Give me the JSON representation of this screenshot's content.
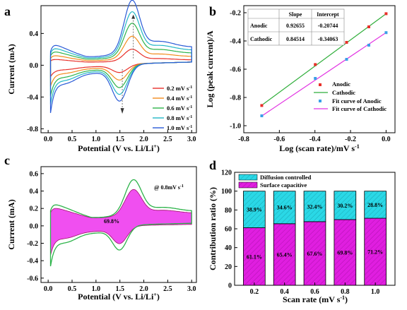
{
  "panels": {
    "a": "a",
    "b": "b",
    "c": "c",
    "d": "d"
  },
  "colors": {
    "red": "#e8302a",
    "orange": "#f28c1e",
    "green": "#2db34a",
    "teal": "#22b7c6",
    "blue": "#2a5bd7",
    "magenta": "#e01ee0",
    "cyan": "#2ad8e6",
    "linegreen": "#2fae3a",
    "linemagenta": "#e233e2"
  },
  "chart_data": [
    {
      "id": "a",
      "type": "line",
      "xlabel": "Potential (V vs. Li/Li",
      "xlabel_sup": "+",
      "xlabel_end": ")",
      "ylabel": "Current (mA)",
      "xlim": [
        -0.15,
        3.1
      ],
      "ylim": [
        -0.85,
        0.75
      ],
      "xticks": [
        "0.0",
        "0.5",
        "1.0",
        "1.5",
        "2.0",
        "2.5",
        "3.0"
      ],
      "yticks": [
        "-0.8",
        "-0.4",
        "0.0",
        "0.4"
      ],
      "series": [
        {
          "name": "0.2 mV s",
          "color": "red",
          "scale": 0.2
        },
        {
          "name": "0.4 mV s",
          "color": "orange",
          "scale": 0.38
        },
        {
          "name": "0.6 mV s",
          "color": "green",
          "scale": 0.56
        },
        {
          "name": "0.8 mV s",
          "color": "teal",
          "scale": 0.72
        },
        {
          "name": "1.0 mV s",
          "color": "blue",
          "scale": 0.88
        }
      ],
      "series_unit_sup": "-1",
      "peak_anodic": {
        "x": 1.78,
        "y": 0.62
      },
      "peak_cathodic": {
        "x": 1.55,
        "y": -0.36
      }
    },
    {
      "id": "b",
      "type": "scatter",
      "xlabel": "Log (scan rate)/mV s",
      "xlabel_sup": "-1",
      "ylabel": "Log (peak current)/A",
      "xlim": [
        -0.8,
        0.05
      ],
      "ylim": [
        -1.05,
        -0.15
      ],
      "xticks": [
        "-0.8",
        "-0.6",
        "-0.4",
        "-0.2",
        "0.0"
      ],
      "yticks": [
        "-1.0",
        "-0.8",
        "-0.6",
        "-0.4",
        "-0.2"
      ],
      "x": [
        -0.699,
        -0.398,
        -0.222,
        -0.097,
        0.0
      ],
      "anodic": [
        -0.857,
        -0.567,
        -0.41,
        -0.3,
        -0.207
      ],
      "cathodic": [
        -0.93,
        -0.665,
        -0.53,
        -0.43,
        -0.341
      ],
      "table": {
        "headers": [
          "",
          "Slope",
          "Intercept"
        ],
        "rows": [
          [
            "Anodic",
            "0.92655",
            "-0.20744"
          ],
          [
            "Cathodic",
            "0.84514",
            "-0.34063"
          ]
        ]
      },
      "legend": [
        "Anodic",
        "Cathodic",
        "Fit curve of Anodic",
        "Fit curve of Cathodic"
      ]
    },
    {
      "id": "c",
      "type": "area",
      "xlabel": "Potential (V vs. Li/Li",
      "xlabel_sup": "+",
      "xlabel_end": ")",
      "ylabel": "Current (mA)",
      "xlim": [
        -0.15,
        3.1
      ],
      "ylim": [
        -0.65,
        0.68
      ],
      "xticks": [
        "0.0",
        "0.5",
        "1.0",
        "1.5",
        "2.0",
        "2.5",
        "3.0"
      ],
      "yticks": [
        "-0.6",
        "-0.4",
        "-0.2",
        "0.0",
        "0.2",
        "0.4",
        "0.6"
      ],
      "annotation": "@ 0.8mV s",
      "annotation_sup": "-1",
      "fill_label": "69.8%"
    },
    {
      "id": "d",
      "type": "bar",
      "xlabel": "Scan rate (mV s",
      "xlabel_sup": "-1",
      "xlabel_end": ")",
      "ylabel": "Contribution ratio (%)",
      "ylim": [
        0,
        120
      ],
      "yticks": [
        "0",
        "20",
        "40",
        "60",
        "80",
        "100",
        "120"
      ],
      "categories": [
        "0.2",
        "0.4",
        "0.6",
        "0.8",
        "1.0"
      ],
      "series": [
        {
          "name": "Diffusion controlled",
          "values": [
            38.9,
            34.6,
            32.4,
            30.2,
            28.8
          ],
          "labels": [
            "38.9%",
            "34.6%",
            "32.4%",
            "30.2%",
            "28.8%"
          ]
        },
        {
          "name": "Surface capacitive",
          "values": [
            61.1,
            65.4,
            67.6,
            69.8,
            71.2
          ],
          "labels": [
            "61.1%",
            "65.4%",
            "67.6%",
            "69.8%",
            "71.2%"
          ]
        }
      ]
    }
  ]
}
